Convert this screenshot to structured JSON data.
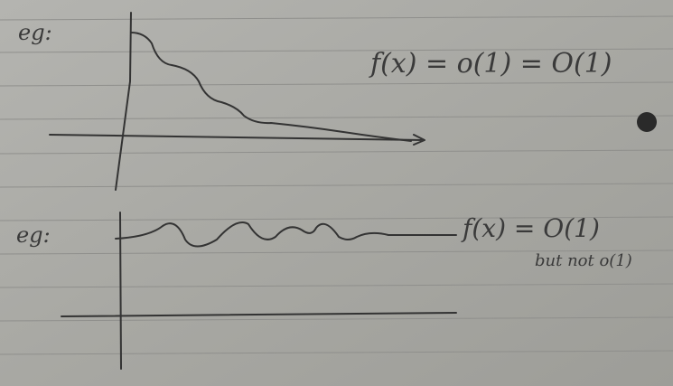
{
  "notes": [
    {
      "label": "eg:",
      "statement": "f(x) = o(1) = O(1)"
    },
    {
      "label": "eg:",
      "statement": "f(x) = O(1)",
      "remark": "but not o(1)"
    }
  ]
}
